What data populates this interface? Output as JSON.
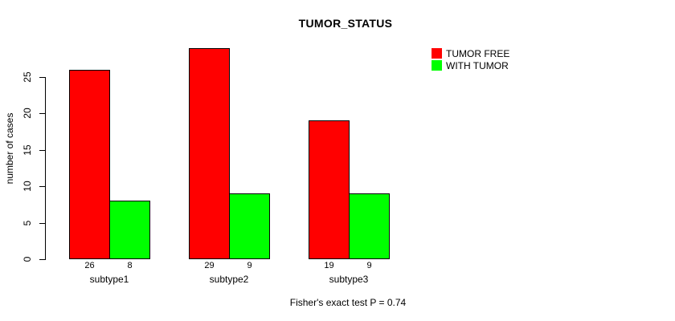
{
  "chart_data": {
    "type": "bar",
    "title": "TUMOR_STATUS",
    "ylabel": "number of cases",
    "xlabel": "",
    "categories": [
      "subtype1",
      "subtype2",
      "subtype3"
    ],
    "series": [
      {
        "name": "TUMOR FREE",
        "color": "#ff0000",
        "values": [
          26,
          29,
          19
        ]
      },
      {
        "name": "WITH TUMOR",
        "color": "#00ff00",
        "values": [
          8,
          9,
          9
        ]
      }
    ],
    "bar_value_labels": [
      [
        "26",
        "8"
      ],
      [
        "29",
        "9"
      ],
      [
        "19",
        "9"
      ]
    ],
    "yticks": [
      0,
      5,
      10,
      15,
      20,
      25
    ],
    "ylim": [
      0,
      29
    ],
    "grid": false,
    "legend_position": "top-right",
    "bar_border_color": "#000000",
    "text_color": "#000000",
    "background_color": "#ffffff",
    "annotation": "Fisher's exact test P = 0.74"
  }
}
